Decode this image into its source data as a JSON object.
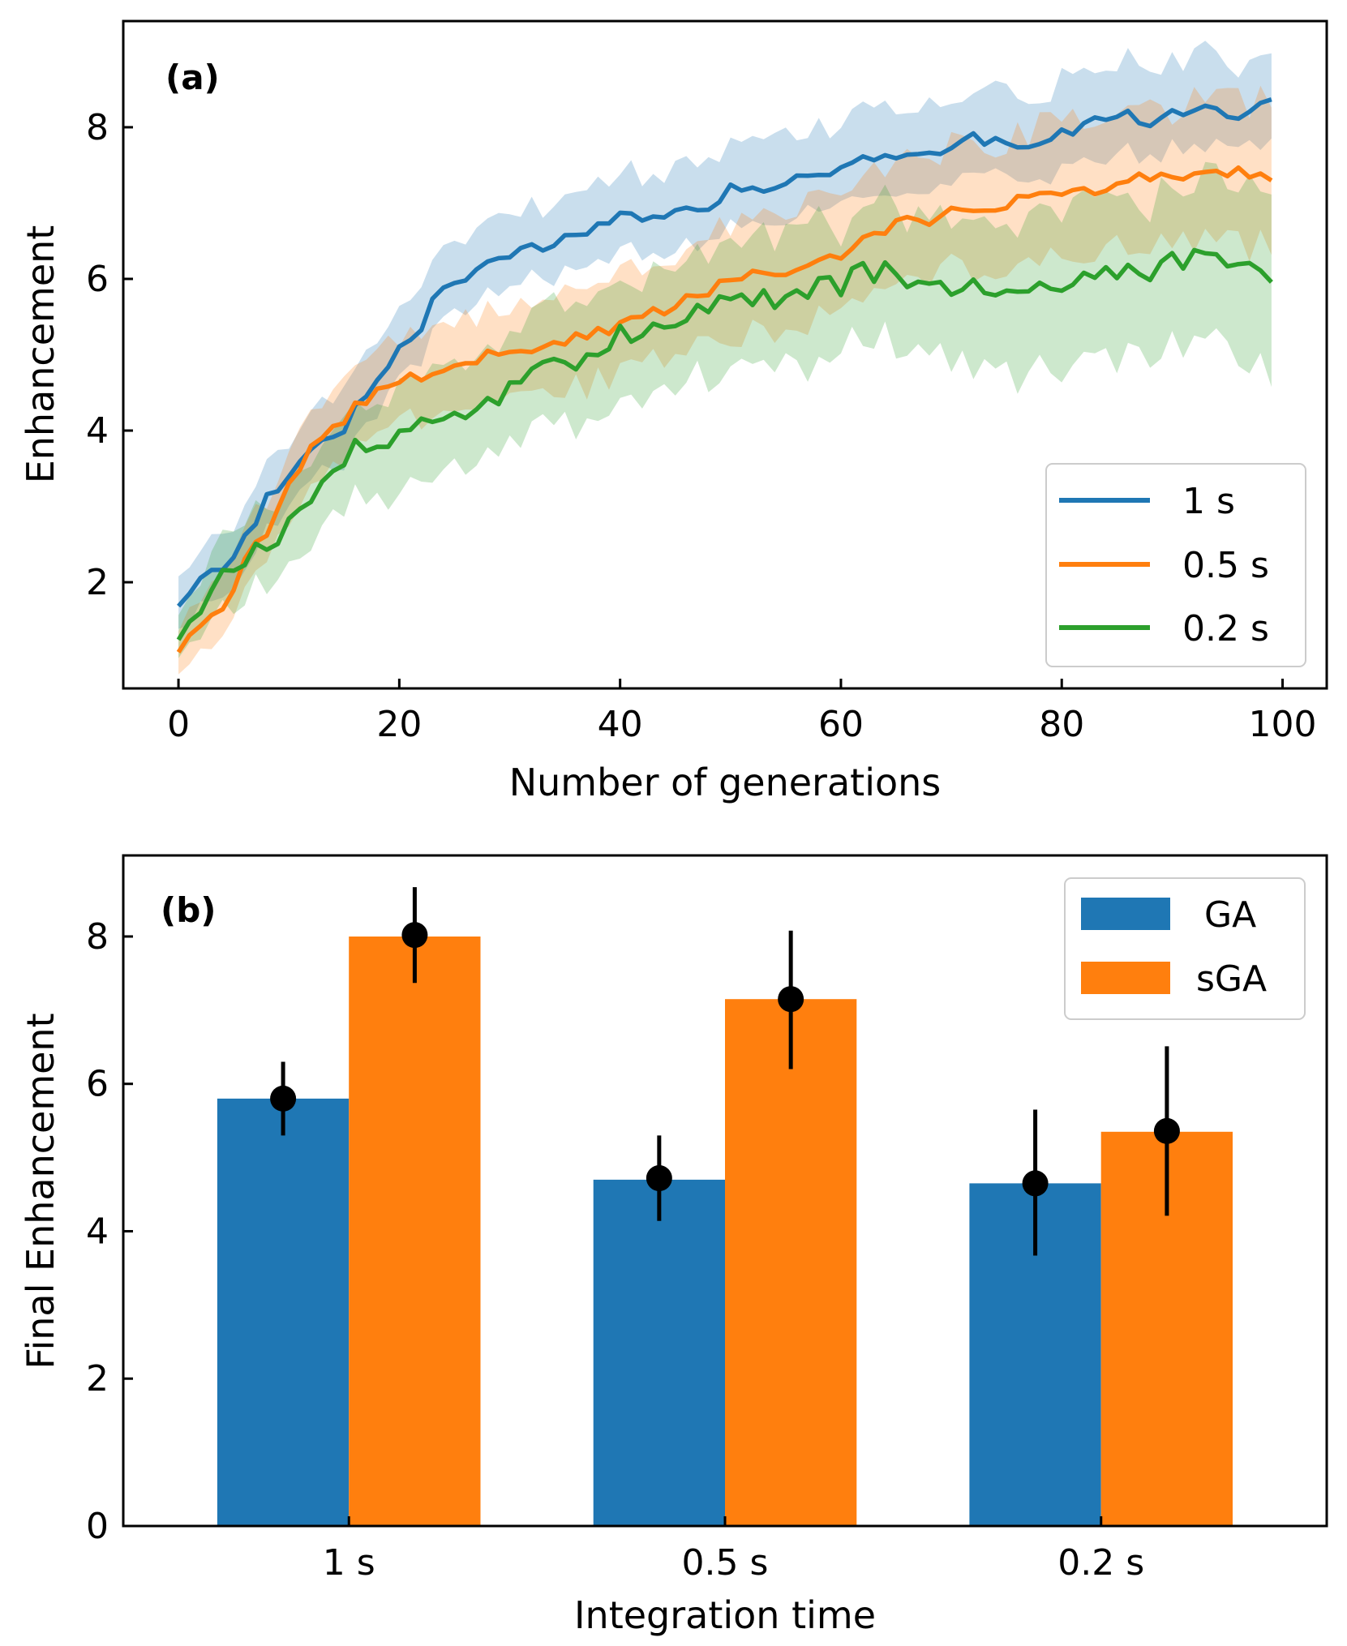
{
  "chart_data": [
    {
      "panel_label": "(a)",
      "type": "line",
      "xlabel": "Number of generations",
      "ylabel": "Enhancement",
      "xlim": [
        -5,
        104
      ],
      "ylim": [
        0.6,
        9.4
      ],
      "xticks": [
        0,
        20,
        40,
        60,
        80,
        100
      ],
      "yticks": [
        2,
        4,
        6,
        8
      ],
      "legend": "lower-right",
      "series": [
        {
          "name": "1 s",
          "color": "#1f77b4",
          "key": [
            [
              0,
              1.65
            ],
            [
              2,
              2.1
            ],
            [
              5,
              2.3
            ],
            [
              8,
              3.1
            ],
            [
              10,
              3.4
            ],
            [
              13,
              3.9
            ],
            [
              15,
              4.05
            ],
            [
              17,
              4.5
            ],
            [
              20,
              5.1
            ],
            [
              22,
              5.4
            ],
            [
              24,
              5.95
            ],
            [
              26,
              5.95
            ],
            [
              28,
              6.15
            ],
            [
              31,
              6.45
            ],
            [
              34,
              6.45
            ],
            [
              36,
              6.55
            ],
            [
              38,
              6.7
            ],
            [
              40,
              6.8
            ],
            [
              43,
              6.85
            ],
            [
              46,
              6.9
            ],
            [
              48,
              6.95
            ],
            [
              50,
              7.2
            ],
            [
              53,
              7.15
            ],
            [
              55,
              7.2
            ],
            [
              58,
              7.45
            ],
            [
              60,
              7.4
            ],
            [
              62,
              7.55
            ],
            [
              65,
              7.6
            ],
            [
              68,
              7.65
            ],
            [
              70,
              7.7
            ],
            [
              72,
              7.85
            ],
            [
              75,
              7.75
            ],
            [
              78,
              7.85
            ],
            [
              80,
              7.9
            ],
            [
              83,
              8.1
            ],
            [
              86,
              8.15
            ],
            [
              88,
              8.05
            ],
            [
              90,
              8.15
            ],
            [
              93,
              8.3
            ],
            [
              95,
              8.2
            ],
            [
              97,
              8.15
            ],
            [
              99,
              8.35
            ]
          ],
          "noise": 0.08,
          "band_lo": [
            0.35,
            0.5
          ],
          "band_hi": [
            0.35,
            0.7
          ]
        },
        {
          "name": "0.5 s",
          "color": "#ff7f0e",
          "key": [
            [
              0,
              1.15
            ],
            [
              2,
              1.45
            ],
            [
              4,
              1.65
            ],
            [
              6,
              2.3
            ],
            [
              8,
              2.6
            ],
            [
              10,
              3.3
            ],
            [
              12,
              3.8
            ],
            [
              14,
              4.0
            ],
            [
              16,
              4.3
            ],
            [
              18,
              4.5
            ],
            [
              20,
              4.6
            ],
            [
              22,
              4.75
            ],
            [
              25,
              4.85
            ],
            [
              28,
              5.0
            ],
            [
              30,
              5.05
            ],
            [
              33,
              5.1
            ],
            [
              36,
              5.2
            ],
            [
              40,
              5.35
            ],
            [
              43,
              5.55
            ],
            [
              46,
              5.7
            ],
            [
              50,
              5.95
            ],
            [
              53,
              6.05
            ],
            [
              56,
              6.15
            ],
            [
              60,
              6.35
            ],
            [
              63,
              6.55
            ],
            [
              66,
              6.75
            ],
            [
              70,
              6.85
            ],
            [
              73,
              6.95
            ],
            [
              76,
              7.05
            ],
            [
              80,
              7.1
            ],
            [
              83,
              7.2
            ],
            [
              86,
              7.3
            ],
            [
              90,
              7.35
            ],
            [
              93,
              7.4
            ],
            [
              96,
              7.4
            ],
            [
              99,
              7.3
            ]
          ],
          "noise": 0.09,
          "band_lo": [
            0.25,
            0.9
          ],
          "band_hi": [
            0.25,
            0.95
          ]
        },
        {
          "name": "0.2 s",
          "color": "#2ca02c",
          "key": [
            [
              0,
              1.25
            ],
            [
              2,
              1.6
            ],
            [
              4,
              2.05
            ],
            [
              6,
              2.3
            ],
            [
              8,
              2.5
            ],
            [
              10,
              2.8
            ],
            [
              12,
              3.1
            ],
            [
              14,
              3.45
            ],
            [
              16,
              3.75
            ],
            [
              18,
              3.85
            ],
            [
              20,
              3.9
            ],
            [
              22,
              4.0
            ],
            [
              25,
              4.2
            ],
            [
              28,
              4.4
            ],
            [
              30,
              4.55
            ],
            [
              33,
              4.75
            ],
            [
              36,
              4.9
            ],
            [
              38,
              5.1
            ],
            [
              40,
              5.25
            ],
            [
              43,
              5.45
            ],
            [
              46,
              5.55
            ],
            [
              50,
              5.7
            ],
            [
              53,
              5.75
            ],
            [
              56,
              5.8
            ],
            [
              60,
              5.9
            ],
            [
              62,
              6.1
            ],
            [
              65,
              6.05
            ],
            [
              68,
              5.95
            ],
            [
              70,
              5.85
            ],
            [
              73,
              5.9
            ],
            [
              76,
              5.9
            ],
            [
              80,
              5.95
            ],
            [
              83,
              6.05
            ],
            [
              86,
              6.05
            ],
            [
              88,
              6.0
            ],
            [
              90,
              6.2
            ],
            [
              92,
              6.3
            ],
            [
              95,
              6.2
            ],
            [
              97,
              6.1
            ],
            [
              99,
              6.0
            ]
          ],
          "noise": 0.16,
          "band_lo": [
            0.25,
            1.2
          ],
          "band_hi": [
            0.3,
            1.0
          ]
        }
      ]
    },
    {
      "panel_label": "(b)",
      "type": "bar",
      "xlabel": "Integration time",
      "ylabel": "Final Enhancement",
      "categories": [
        "1 s",
        "0.5 s",
        "0.2 s"
      ],
      "ylim": [
        0,
        9.1
      ],
      "yticks": [
        0,
        2,
        4,
        6,
        8
      ],
      "legend": "top-right",
      "series": [
        {
          "name": "GA",
          "color": "#1f77b4",
          "values": [
            5.8,
            4.7,
            4.65
          ],
          "points": [
            5.8,
            4.72,
            4.65
          ],
          "err_lo": [
            0.5,
            0.58,
            0.98
          ],
          "err_hi": [
            0.5,
            0.58,
            1.0
          ]
        },
        {
          "name": "sGA",
          "color": "#ff7f0e",
          "values": [
            8.0,
            7.15,
            5.35
          ],
          "points": [
            8.02,
            7.15,
            5.36
          ],
          "err_lo": [
            0.65,
            0.95,
            1.15
          ],
          "err_hi": [
            0.65,
            0.93,
            1.15
          ]
        }
      ]
    }
  ]
}
